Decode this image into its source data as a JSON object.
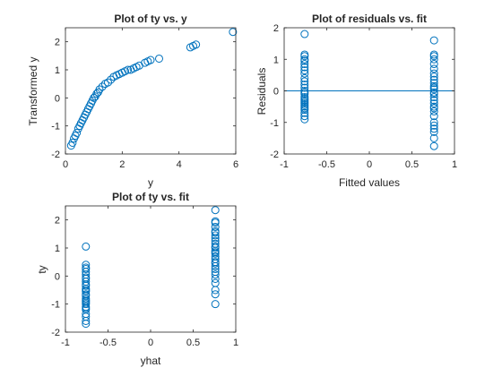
{
  "chart_data": [
    {
      "type": "scatter",
      "title": "Plot of ty vs. y",
      "xlabel": "y",
      "ylabel": "Transformed y",
      "xlim": [
        0,
        6
      ],
      "ylim": [
        -2,
        2.5
      ],
      "xticks": [
        "0",
        "2",
        "4",
        "6"
      ],
      "yticks": [
        "-2",
        "-1",
        "0",
        "1",
        "2"
      ],
      "grid": false,
      "marker": "open-circle",
      "color": "#0072BD",
      "series": [
        {
          "x": [
            0.2,
            0.25,
            0.3,
            0.35,
            0.4,
            0.45,
            0.5,
            0.55,
            0.6,
            0.65,
            0.7,
            0.75,
            0.8,
            0.85,
            0.9,
            0.95,
            1.0,
            1.05,
            1.1,
            1.15,
            1.2,
            1.3,
            1.4,
            1.5,
            1.6,
            1.7,
            1.8,
            1.9,
            2.0,
            2.1,
            2.2,
            2.3,
            2.4,
            2.5,
            2.6,
            2.8,
            2.9,
            3.0,
            3.3,
            4.4,
            4.5,
            4.6,
            5.9
          ],
          "y": [
            -1.7,
            -1.6,
            -1.45,
            -1.35,
            -1.25,
            -1.1,
            -1.0,
            -0.9,
            -0.8,
            -0.7,
            -0.6,
            -0.5,
            -0.4,
            -0.3,
            -0.2,
            -0.1,
            0.0,
            0.05,
            0.15,
            0.2,
            0.3,
            0.4,
            0.5,
            0.55,
            0.65,
            0.75,
            0.8,
            0.85,
            0.9,
            0.95,
            1.0,
            1.0,
            1.05,
            1.1,
            1.15,
            1.25,
            1.3,
            1.35,
            1.4,
            1.8,
            1.85,
            1.9,
            2.35
          ]
        }
      ]
    },
    {
      "type": "scatter",
      "title": "Plot of residuals vs. fit",
      "xlabel": "Fitted values",
      "ylabel": "Residuals",
      "xlim": [
        -1,
        1
      ],
      "ylim": [
        -2,
        2
      ],
      "xticks": [
        "-1",
        "-0.5",
        "0",
        "0.5",
        "1"
      ],
      "yticks": [
        "-2",
        "-1",
        "0",
        "1",
        "2"
      ],
      "grid": false,
      "reference_line_y": 0,
      "marker": "open-circle",
      "color": "#0072BD",
      "series": [
        {
          "x": [
            -0.76,
            -0.76,
            -0.76,
            -0.76,
            -0.76,
            -0.76,
            -0.76,
            -0.76,
            -0.76,
            -0.76,
            -0.76,
            -0.76,
            -0.76,
            -0.76,
            -0.76,
            -0.76,
            -0.76,
            -0.76,
            -0.76,
            -0.76,
            -0.76,
            -0.76,
            -0.76,
            -0.76,
            -0.76,
            -0.76,
            -0.76,
            -0.76,
            0.76,
            0.76,
            0.76,
            0.76,
            0.76,
            0.76,
            0.76,
            0.76,
            0.76,
            0.76,
            0.76,
            0.76,
            0.76,
            0.76,
            0.76,
            0.76,
            0.76,
            0.76,
            0.76,
            0.76,
            0.76,
            0.76,
            0.76,
            0.76,
            0.76,
            0.76,
            0.76,
            0.76
          ],
          "y": [
            1.8,
            1.15,
            1.1,
            1.0,
            0.95,
            0.85,
            0.75,
            0.65,
            0.55,
            0.4,
            0.3,
            0.2,
            0.1,
            0.0,
            -0.05,
            -0.1,
            -0.2,
            -0.25,
            -0.3,
            -0.35,
            -0.4,
            -0.45,
            -0.5,
            -0.55,
            -0.6,
            -0.7,
            -0.8,
            -0.9,
            1.6,
            1.15,
            1.1,
            1.0,
            0.85,
            0.7,
            0.55,
            0.45,
            0.35,
            0.25,
            0.15,
            0.1,
            0.05,
            -0.05,
            -0.1,
            -0.2,
            -0.3,
            -0.4,
            -0.5,
            -0.55,
            -0.65,
            -0.8,
            -1.0,
            -1.1,
            -1.2,
            -1.3,
            -1.5,
            -1.75
          ]
        }
      ]
    },
    {
      "type": "scatter",
      "title": "Plot of ty vs. fit",
      "xlabel": "yhat",
      "ylabel": "ty",
      "xlim": [
        -1,
        1
      ],
      "ylim": [
        -2,
        2.5
      ],
      "xticks": [
        "-1",
        "-0.5",
        "0",
        "0.5",
        "1"
      ],
      "yticks": [
        "-2",
        "-1",
        "0",
        "1",
        "2"
      ],
      "grid": false,
      "marker": "open-circle",
      "color": "#0072BD",
      "series": [
        {
          "x": [
            -0.76,
            -0.76,
            -0.76,
            -0.76,
            -0.76,
            -0.76,
            -0.76,
            -0.76,
            -0.76,
            -0.76,
            -0.76,
            -0.76,
            -0.76,
            -0.76,
            -0.76,
            -0.76,
            -0.76,
            -0.76,
            -0.76,
            -0.76,
            -0.76,
            -0.76,
            -0.76,
            -0.76,
            -0.76,
            -0.76,
            -0.76,
            -0.76,
            0.76,
            0.76,
            0.76,
            0.76,
            0.76,
            0.76,
            0.76,
            0.76,
            0.76,
            0.76,
            0.76,
            0.76,
            0.76,
            0.76,
            0.76,
            0.76,
            0.76,
            0.76,
            0.76,
            0.76,
            0.76,
            0.76,
            0.76,
            0.76,
            0.76,
            0.76,
            0.76,
            0.76
          ],
          "y": [
            1.05,
            0.4,
            0.3,
            0.25,
            0.15,
            0.05,
            -0.05,
            -0.1,
            -0.2,
            -0.3,
            -0.35,
            -0.45,
            -0.5,
            -0.55,
            -0.65,
            -0.7,
            -0.8,
            -0.85,
            -0.9,
            -0.95,
            -1.0,
            -1.1,
            -1.15,
            -1.2,
            -1.35,
            -1.45,
            -1.6,
            -1.7,
            2.35,
            1.95,
            1.9,
            1.75,
            1.6,
            1.55,
            1.45,
            1.35,
            1.25,
            1.15,
            1.05,
            1.0,
            0.9,
            0.85,
            0.8,
            0.7,
            0.6,
            0.5,
            0.45,
            0.35,
            0.25,
            0.15,
            0.05,
            -0.1,
            -0.25,
            -0.5,
            -0.65,
            -1.0
          ]
        }
      ]
    }
  ]
}
